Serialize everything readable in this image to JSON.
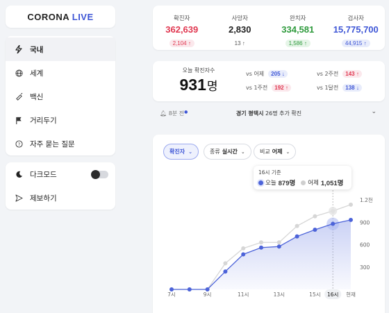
{
  "logo": {
    "main": "CORONA",
    "accent": "LIVE"
  },
  "nav": [
    {
      "label": "국내",
      "icon": "bolt-icon"
    },
    {
      "label": "세계",
      "icon": "globe-icon"
    },
    {
      "label": "백신",
      "icon": "syringe-icon"
    },
    {
      "label": "거리두기",
      "icon": "flag-icon"
    },
    {
      "label": "자주 묻는 질문",
      "icon": "question-icon"
    }
  ],
  "settings": {
    "dark_mode": "다크모드",
    "report": "제보하기"
  },
  "stats": [
    {
      "label": "확진자",
      "value": "362,639",
      "change": "2,104",
      "color": "#e0364f",
      "badge_bg": "#fbe8ec"
    },
    {
      "label": "사망자",
      "value": "2,830",
      "change": "13",
      "color": "#222222",
      "badge_bg": "#ffffff"
    },
    {
      "label": "완치자",
      "value": "334,581",
      "change": "1,586",
      "color": "#2e9a3c",
      "badge_bg": "#e6f5e8"
    },
    {
      "label": "검사자",
      "value": "15,775,700",
      "change": "44,915",
      "color": "#3e56d6",
      "badge_bg": "#e8ecfb"
    }
  ],
  "today": {
    "label": "오늘 확진자수",
    "value": "931",
    "unit": "명",
    "comparisons": [
      {
        "label": "vs 어제",
        "value": "205",
        "arrow": "↓",
        "tone": "blue"
      },
      {
        "label": "vs 2주전",
        "value": "143",
        "arrow": "↑",
        "tone": "red"
      },
      {
        "label": "vs 1주전",
        "value": "192",
        "arrow": "↑",
        "tone": "red"
      },
      {
        "label": "vs 1달전",
        "value": "138",
        "arrow": "↓",
        "tone": "blue"
      }
    ]
  },
  "notice": {
    "time": "8분 전",
    "region": "경기 평택시",
    "text": "26명 추가 확진"
  },
  "filters": [
    {
      "label": "확진자",
      "value": ""
    },
    {
      "label": "종류",
      "value": "실시간"
    },
    {
      "label": "비교",
      "value": "어제"
    }
  ],
  "tooltip": {
    "title": "16시 기준",
    "today_label": "오늘",
    "today_value": "879명",
    "yesterday_label": "어제",
    "yesterday_value": "1,051명"
  },
  "chart_data": {
    "type": "line",
    "x": [
      "7시",
      "8시",
      "9시",
      "10시",
      "11시",
      "12시",
      "13시",
      "14시",
      "15시",
      "16시",
      "현재"
    ],
    "xticks": [
      "7시",
      "9시",
      "11시",
      "13시",
      "15시",
      "16시",
      "현재"
    ],
    "highlight": "16시",
    "yticks": [
      "300",
      "600",
      "900",
      "1.2천"
    ],
    "ylim": [
      0,
      1200
    ],
    "series": [
      {
        "name": "오늘",
        "color": "#4c63d9",
        "values": [
          0,
          0,
          0,
          240,
          470,
          560,
          575,
          710,
          800,
          879,
          931
        ]
      },
      {
        "name": "어제",
        "color": "#d6d6d6",
        "values": [
          0,
          0,
          0,
          350,
          550,
          630,
          630,
          850,
          980,
          1051,
          1136
        ]
      }
    ]
  }
}
